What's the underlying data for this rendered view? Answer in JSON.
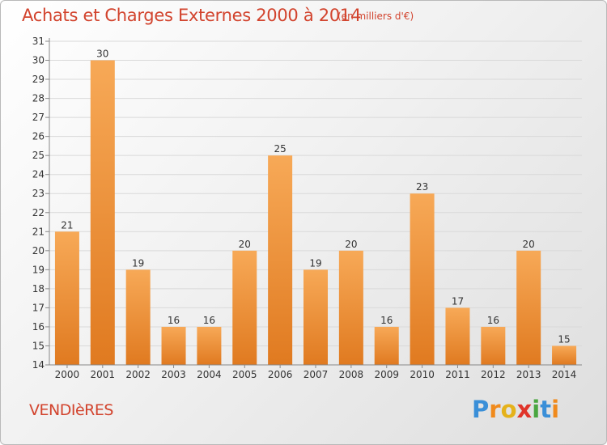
{
  "header": {
    "title": "Achats et Charges Externes 2000 à 2014",
    "subtitle": "(en milliers d'€)"
  },
  "footer": {
    "commune": "VENDIèRES",
    "logo_letters": [
      "P",
      "r",
      "o",
      "x",
      "i",
      "t",
      "i"
    ],
    "logo_colors": [
      "#3a8fd8",
      "#f08a1c",
      "#e5b21a",
      "#e0342a",
      "#4aa640",
      "#3a8fd8",
      "#f08a1c"
    ]
  },
  "colors": {
    "bar_light": "#f7a957",
    "bar_dark": "#e07a20",
    "text": "#d2432d",
    "grid": "#d9d9d9"
  },
  "chart_data": {
    "type": "bar",
    "title": "Achats et Charges Externes 2000 à 2014",
    "subtitle": "(en milliers d'€)",
    "xlabel": "",
    "ylabel": "",
    "categories": [
      "2000",
      "2001",
      "2002",
      "2003",
      "2004",
      "2005",
      "2006",
      "2007",
      "2008",
      "2009",
      "2010",
      "2011",
      "2012",
      "2013",
      "2014"
    ],
    "values": [
      21,
      30,
      19,
      16,
      16,
      20,
      25,
      19,
      20,
      16,
      23,
      17,
      16,
      20,
      15
    ],
    "ylim": [
      14,
      31
    ],
    "yticks": [
      14,
      15,
      16,
      17,
      18,
      19,
      20,
      21,
      22,
      23,
      24,
      25,
      26,
      27,
      28,
      29,
      30,
      31
    ],
    "grid": true,
    "data_labels": true
  }
}
